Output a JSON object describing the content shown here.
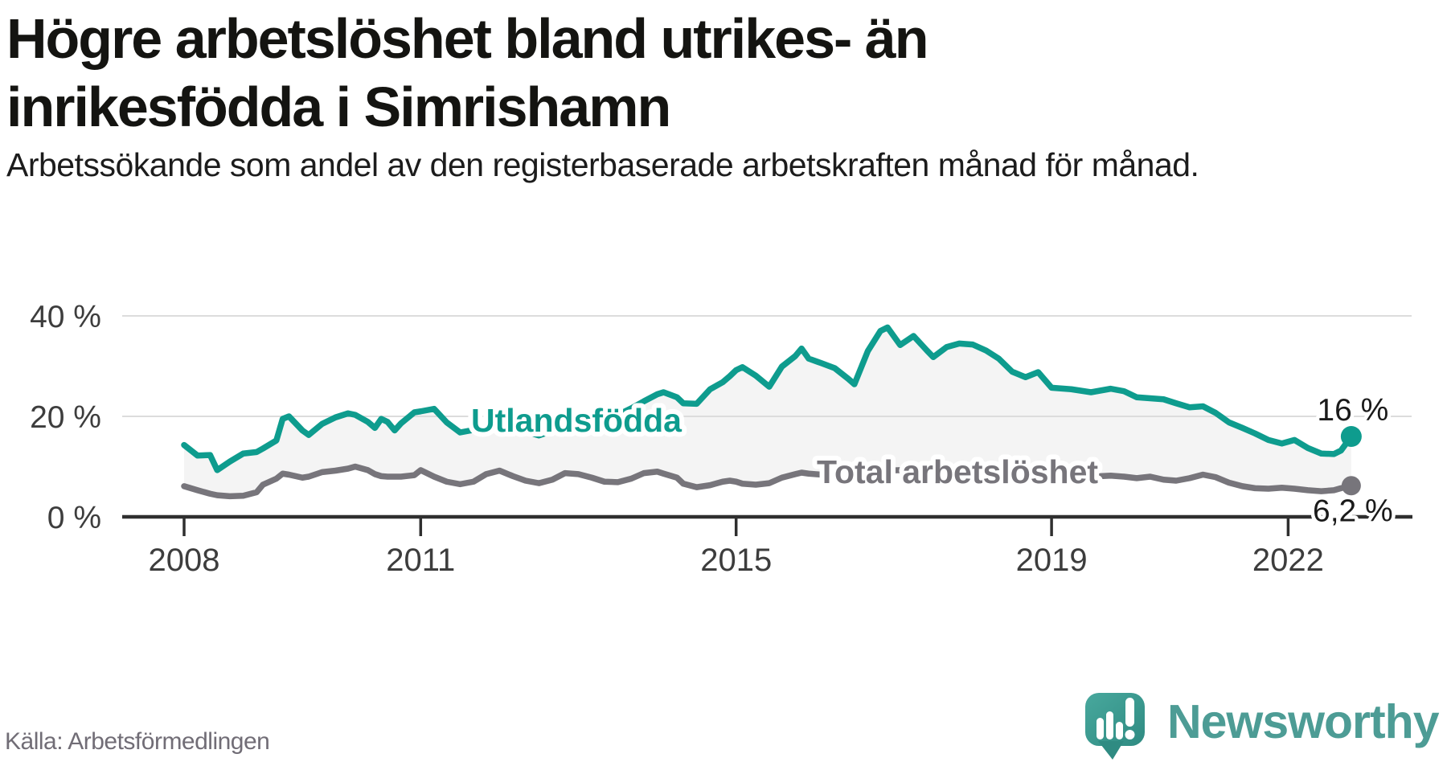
{
  "title": "Högre arbetslöshet bland utrikes- än inrikesfödda i Simrishamn",
  "subtitle": "Arbetssökande som andel av den registerbaserade arbetskraften månad för månad.",
  "source": {
    "text": "Källa: Arbetsförmedlingen"
  },
  "brand": {
    "name": "Newsworthy",
    "wordmark_color": "#4D9C95",
    "bubble_color_top": "#48A89D",
    "bubble_color_bottom": "#2F8B82"
  },
  "chart_data": {
    "type": "line",
    "x_ticks": [
      {
        "value": 2008,
        "label": "2008"
      },
      {
        "value": 2011,
        "label": "2011"
      },
      {
        "value": 2015,
        "label": "2015"
      },
      {
        "value": 2019,
        "label": "2019"
      },
      {
        "value": 2022,
        "label": "2022"
      }
    ],
    "y_ticks": [
      {
        "value": 0,
        "label": "0 %"
      },
      {
        "value": 20,
        "label": "20 %"
      },
      {
        "value": 40,
        "label": "40 %"
      }
    ],
    "ylim": [
      0,
      42
    ],
    "x_range": [
      2008,
      2022.9
    ],
    "grid_on": true,
    "grid_color": "#dcdcdc",
    "axis_color": "#2f2f2f",
    "tick_label_color": "#3d3d3d",
    "area_fill": "#f4f4f4",
    "end_label_color": "#1a1a1a",
    "x": [
      2008.0,
      2008.17,
      2008.33,
      2008.42,
      2008.58,
      2008.75,
      2008.92,
      2009.0,
      2009.17,
      2009.25,
      2009.33,
      2009.5,
      2009.58,
      2009.75,
      2009.92,
      2010.08,
      2010.17,
      2010.33,
      2010.42,
      2010.5,
      2010.58,
      2010.67,
      2010.75,
      2010.92,
      2011.0,
      2011.17,
      2011.33,
      2011.5,
      2011.67,
      2011.83,
      2012.0,
      2012.17,
      2012.33,
      2012.5,
      2012.67,
      2012.83,
      2013.0,
      2013.17,
      2013.33,
      2013.5,
      2013.67,
      2013.83,
      2014.0,
      2014.08,
      2014.25,
      2014.33,
      2014.5,
      2014.67,
      2014.83,
      2014.92,
      2015.0,
      2015.08,
      2015.25,
      2015.42,
      2015.58,
      2015.75,
      2015.83,
      2015.92,
      2016.08,
      2016.25,
      2016.42,
      2016.5,
      2016.67,
      2016.83,
      2016.92,
      2017.08,
      2017.25,
      2017.42,
      2017.5,
      2017.67,
      2017.83,
      2018.0,
      2018.17,
      2018.33,
      2018.5,
      2018.67,
      2018.83,
      2019.0,
      2019.25,
      2019.5,
      2019.75,
      2019.92,
      2020.08,
      2020.25,
      2020.42,
      2020.58,
      2020.75,
      2020.92,
      2021.08,
      2021.25,
      2021.42,
      2021.58,
      2021.75,
      2021.92,
      2022.08,
      2022.25,
      2022.42,
      2022.58,
      2022.67,
      2022.8
    ],
    "series": [
      {
        "name": "Utlandsfödda",
        "color": "#0e9c8e",
        "end_label": "16 %",
        "last_value": 16,
        "values": [
          14.3,
          12.2,
          12.3,
          9.3,
          11.0,
          12.6,
          12.9,
          13.6,
          15.2,
          19.5,
          20.0,
          17.2,
          16.3,
          18.5,
          19.8,
          20.6,
          20.3,
          18.9,
          17.7,
          19.5,
          18.9,
          17.2,
          18.6,
          20.8,
          21.0,
          21.5,
          18.8,
          16.8,
          17.3,
          18.0,
          18.6,
          17.8,
          17.0,
          16.2,
          17.1,
          18.0,
          18.7,
          19.2,
          19.7,
          20.3,
          21.6,
          23.0,
          24.4,
          24.8,
          23.8,
          22.6,
          22.5,
          25.4,
          26.8,
          28.0,
          29.2,
          29.8,
          28.1,
          25.9,
          29.9,
          32.0,
          33.5,
          31.5,
          30.6,
          29.6,
          27.5,
          26.4,
          33.0,
          37.0,
          37.7,
          34.2,
          36.0,
          33.1,
          31.8,
          33.8,
          34.5,
          34.3,
          33.1,
          31.5,
          28.9,
          27.8,
          28.8,
          25.7,
          25.4,
          24.8,
          25.5,
          25.0,
          23.8,
          23.6,
          23.4,
          22.6,
          21.8,
          22.0,
          20.7,
          18.8,
          17.7,
          16.6,
          15.3,
          14.6,
          15.3,
          13.7,
          12.6,
          12.5,
          13.2,
          16.0
        ]
      },
      {
        "name": "Total arbetslöshet",
        "color": "#77757b",
        "end_label": "6,2 %",
        "last_value": 6.2,
        "values": [
          6.1,
          5.3,
          4.6,
          4.3,
          4.1,
          4.2,
          4.9,
          6.4,
          7.6,
          8.6,
          8.4,
          7.8,
          8.0,
          8.9,
          9.2,
          9.6,
          10.0,
          9.3,
          8.5,
          8.1,
          8.0,
          8.0,
          8.0,
          8.3,
          9.3,
          8.0,
          7.0,
          6.5,
          7.0,
          8.5,
          9.2,
          8.1,
          7.2,
          6.7,
          7.4,
          8.7,
          8.5,
          7.8,
          7.0,
          6.9,
          7.6,
          8.7,
          9.0,
          8.6,
          7.8,
          6.6,
          5.9,
          6.3,
          7.0,
          7.2,
          7.0,
          6.6,
          6.4,
          6.7,
          7.8,
          8.5,
          8.8,
          8.6,
          8.4,
          8.1,
          8.2,
          8.4,
          8.7,
          9.0,
          9.2,
          9.3,
          9.1,
          8.9,
          8.8,
          8.9,
          9.1,
          9.2,
          8.9,
          8.6,
          8.3,
          8.4,
          8.6,
          8.2,
          8.2,
          8.0,
          8.2,
          8.0,
          7.7,
          8.0,
          7.4,
          7.2,
          7.7,
          8.4,
          7.9,
          6.8,
          6.1,
          5.7,
          5.6,
          5.8,
          5.6,
          5.3,
          5.1,
          5.3,
          5.7,
          6.2
        ]
      }
    ]
  }
}
